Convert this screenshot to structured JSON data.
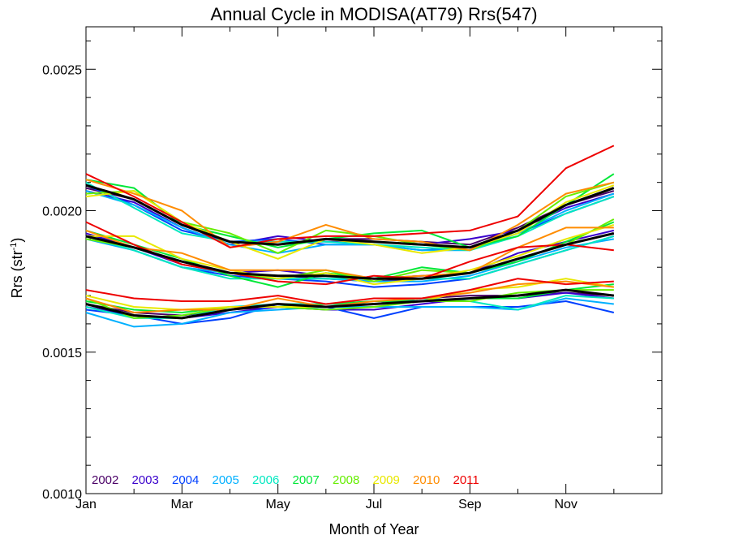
{
  "chart_data": {
    "type": "line",
    "title": "Annual Cycle in MODISA(AT79) Rrs(547)",
    "xlabel": "Month of Year",
    "ylabel_main": "Rrs (str",
    "ylabel_sup": "-1",
    "ylabel_close": ")",
    "xlim": [
      1,
      13
    ],
    "ylim": [
      0.001,
      0.00265
    ],
    "x_ticks": [
      {
        "x": 1,
        "label": "Jan"
      },
      {
        "x": 3,
        "label": "Mar"
      },
      {
        "x": 5,
        "label": "May"
      },
      {
        "x": 7,
        "label": "Jul"
      },
      {
        "x": 9,
        "label": "Sep"
      },
      {
        "x": 11,
        "label": "Nov"
      }
    ],
    "y_ticks": [
      {
        "y": 0.001,
        "label": "0.0010"
      },
      {
        "y": 0.0015,
        "label": "0.0015"
      },
      {
        "y": 0.002,
        "label": "0.0020"
      },
      {
        "y": 0.0025,
        "label": "0.0025"
      }
    ],
    "x": [
      1,
      2,
      3,
      4,
      5,
      6,
      7,
      8,
      9,
      10,
      11,
      12
    ],
    "series": [
      {
        "name": "2002",
        "color": "#4a0066",
        "groups": [
          [
            0.00208,
            0.00204,
            0.00195,
            0.00189,
            0.00188,
            0.0019,
            0.0019,
            0.00189,
            0.00188,
            0.00194,
            0.00202,
            0.00207
          ],
          [
            0.00191,
            0.00187,
            0.00182,
            0.00178,
            0.00177,
            0.00176,
            0.00175,
            0.00176,
            0.00178,
            0.00183,
            0.00188,
            0.00192
          ],
          [
            0.00167,
            0.00164,
            0.00163,
            0.00165,
            0.00166,
            0.00166,
            0.00167,
            0.00169,
            0.0017,
            0.0017,
            0.00171,
            0.0017
          ]
        ]
      },
      {
        "name": "2003",
        "color": "#3a00cc",
        "groups": [
          [
            0.00207,
            0.00203,
            0.00194,
            0.00188,
            0.00191,
            0.00189,
            0.00189,
            0.00188,
            0.0019,
            0.00193,
            0.00201,
            0.00206
          ],
          [
            0.00192,
            0.00187,
            0.00181,
            0.00178,
            0.00179,
            0.00177,
            0.00176,
            0.00177,
            0.00178,
            0.00185,
            0.00189,
            0.00193
          ],
          [
            0.00166,
            0.00163,
            0.00162,
            0.00164,
            0.00166,
            0.00165,
            0.00165,
            0.00167,
            0.00169,
            0.00169,
            0.00171,
            0.00169
          ]
        ]
      },
      {
        "name": "2004",
        "color": "#0040ff",
        "groups": [
          [
            0.00209,
            0.00202,
            0.00193,
            0.00189,
            0.0019,
            0.00188,
            0.00188,
            0.00186,
            0.00187,
            0.00192,
            0.00199,
            0.00205
          ],
          [
            0.00191,
            0.00186,
            0.0018,
            0.00177,
            0.00176,
            0.00175,
            0.00173,
            0.00174,
            0.00176,
            0.00181,
            0.00186,
            0.00191
          ],
          [
            0.00165,
            0.00163,
            0.0016,
            0.00162,
            0.00167,
            0.00166,
            0.00162,
            0.00166,
            0.00166,
            0.00166,
            0.00168,
            0.00164
          ]
        ]
      },
      {
        "name": "2005",
        "color": "#00b0ff",
        "groups": [
          [
            0.00207,
            0.00202,
            0.00194,
            0.00188,
            0.00185,
            0.00188,
            0.00188,
            0.00186,
            0.00186,
            0.00192,
            0.002,
            0.00206
          ],
          [
            0.0019,
            0.00186,
            0.0018,
            0.00178,
            0.00176,
            0.00176,
            0.00175,
            0.00175,
            0.00177,
            0.00182,
            0.00187,
            0.0019
          ],
          [
            0.00164,
            0.00159,
            0.0016,
            0.00164,
            0.00165,
            0.00166,
            0.00166,
            0.00166,
            0.00166,
            0.00165,
            0.00169,
            0.00167
          ]
        ]
      },
      {
        "name": "2006",
        "color": "#00e8c0",
        "groups": [
          [
            0.0021,
            0.00201,
            0.00192,
            0.00189,
            0.00189,
            0.00189,
            0.00188,
            0.00187,
            0.00186,
            0.00191,
            0.00199,
            0.00205
          ],
          [
            0.00191,
            0.00186,
            0.0018,
            0.00176,
            0.00176,
            0.00176,
            0.00176,
            0.00176,
            0.00176,
            0.00181,
            0.00186,
            0.00191
          ],
          [
            0.00166,
            0.00162,
            0.00162,
            0.00166,
            0.00167,
            0.00167,
            0.00167,
            0.00169,
            0.00168,
            0.00165,
            0.0017,
            0.00169
          ]
        ]
      },
      {
        "name": "2007",
        "color": "#00e838",
        "groups": [
          [
            0.00211,
            0.00208,
            0.00195,
            0.00191,
            0.00187,
            0.0019,
            0.00192,
            0.00193,
            0.00187,
            0.00191,
            0.00202,
            0.00213
          ],
          [
            0.00193,
            0.00188,
            0.00183,
            0.00177,
            0.00173,
            0.00178,
            0.00176,
            0.0018,
            0.00178,
            0.00182,
            0.00189,
            0.00196
          ],
          [
            0.00168,
            0.00165,
            0.00164,
            0.00166,
            0.00166,
            0.00167,
            0.00168,
            0.00168,
            0.00169,
            0.00169,
            0.00172,
            0.00174
          ]
        ]
      },
      {
        "name": "2008",
        "color": "#66ee00",
        "groups": [
          [
            0.00206,
            0.00207,
            0.00196,
            0.00192,
            0.00185,
            0.00193,
            0.00191,
            0.00188,
            0.00186,
            0.00193,
            0.00205,
            0.0021
          ],
          [
            0.0019,
            0.00187,
            0.00182,
            0.00178,
            0.00176,
            0.00179,
            0.00175,
            0.00179,
            0.00178,
            0.00183,
            0.00188,
            0.00197
          ],
          [
            0.00169,
            0.00162,
            0.00163,
            0.00166,
            0.00166,
            0.00165,
            0.00166,
            0.00168,
            0.00168,
            0.00171,
            0.00172,
            0.00172
          ]
        ]
      },
      {
        "name": "2009",
        "color": "#e8e800",
        "groups": [
          [
            0.00205,
            0.00207,
            0.00196,
            0.00189,
            0.00183,
            0.0019,
            0.00188,
            0.00185,
            0.00187,
            0.00192,
            0.00203,
            0.00209
          ],
          [
            0.00191,
            0.00191,
            0.00183,
            0.00179,
            0.00176,
            0.00178,
            0.00174,
            0.00176,
            0.00179,
            0.00184,
            0.0019,
            0.00195
          ],
          [
            0.0017,
            0.00166,
            0.00165,
            0.00166,
            0.00166,
            0.00166,
            0.00167,
            0.00168,
            0.00172,
            0.00173,
            0.00176,
            0.00173
          ]
        ]
      },
      {
        "name": "2010",
        "color": "#ff8c00",
        "groups": [
          [
            0.00211,
            0.00206,
            0.002,
            0.00187,
            0.00189,
            0.00195,
            0.0019,
            0.00189,
            0.00186,
            0.00195,
            0.00206,
            0.0021
          ],
          [
            0.00193,
            0.00187,
            0.00185,
            0.00179,
            0.00179,
            0.00179,
            0.00176,
            0.00177,
            0.00178,
            0.00187,
            0.00194,
            0.00194
          ],
          [
            0.00169,
            0.00164,
            0.00165,
            0.00165,
            0.00169,
            0.00166,
            0.00168,
            0.00169,
            0.00171,
            0.00174,
            0.00175,
            0.00173
          ]
        ]
      },
      {
        "name": "2011",
        "color": "#ee0000",
        "groups": [
          [
            0.00213,
            0.00205,
            0.00196,
            0.00187,
            0.0019,
            0.00191,
            0.00191,
            0.00192,
            0.00193,
            0.00198,
            0.00215,
            0.00223
          ],
          [
            0.00196,
            0.00188,
            0.00181,
            0.00178,
            0.00175,
            0.00174,
            0.00177,
            0.00176,
            0.00182,
            0.00187,
            0.00188,
            0.00186
          ],
          [
            0.00172,
            0.00169,
            0.00168,
            0.00168,
            0.0017,
            0.00167,
            0.00169,
            0.00169,
            0.00172,
            0.00176,
            0.00174,
            0.00175
          ]
        ]
      },
      {
        "name": "",
        "color": "#000000",
        "width": 3,
        "groups": [
          [
            0.00209,
            0.00204,
            0.00195,
            0.00189,
            0.00188,
            0.0019,
            0.00189,
            0.00188,
            0.00187,
            0.00193,
            0.00202,
            0.00208
          ],
          [
            0.00191,
            0.00187,
            0.00182,
            0.00178,
            0.00177,
            0.00177,
            0.00176,
            0.00176,
            0.00178,
            0.00183,
            0.00188,
            0.00192
          ],
          [
            0.00167,
            0.00163,
            0.00162,
            0.00165,
            0.00167,
            0.00166,
            0.00167,
            0.00168,
            0.00169,
            0.0017,
            0.00172,
            0.0017
          ]
        ]
      }
    ],
    "legend_placement": "bottom-left, inside plot"
  }
}
